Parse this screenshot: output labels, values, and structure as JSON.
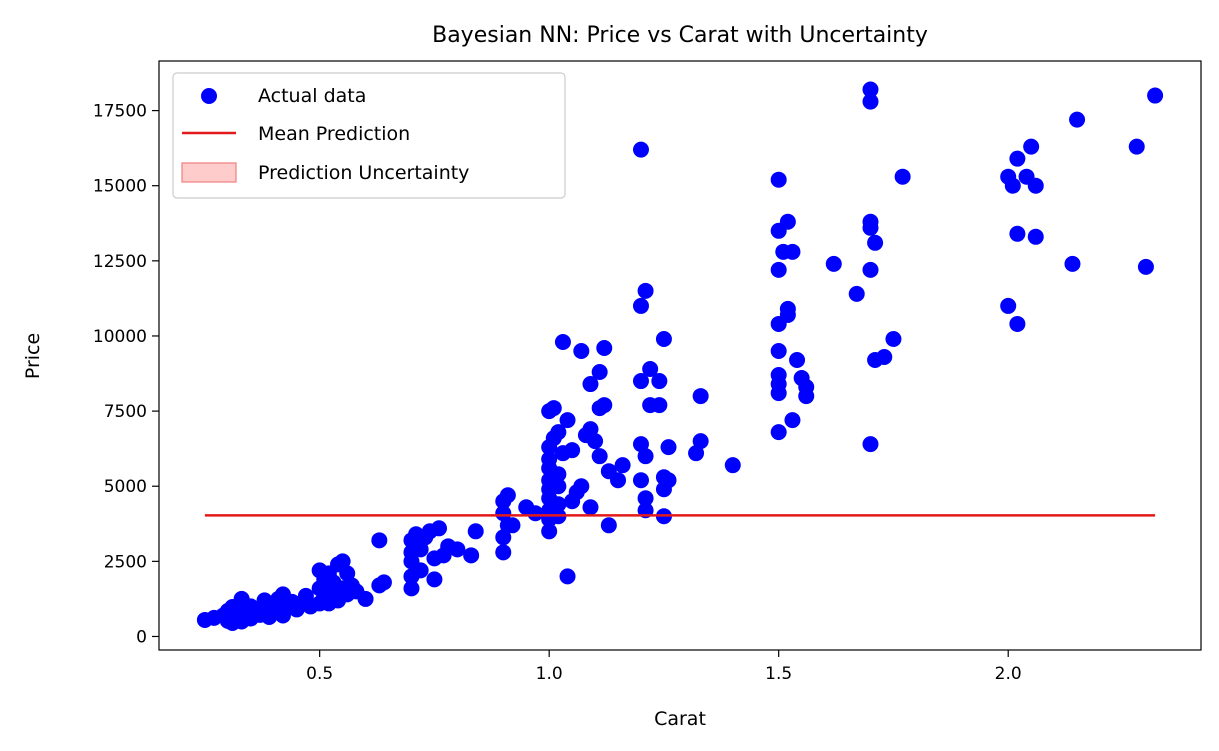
{
  "chart_data": {
    "type": "scatter",
    "title": "Bayesian NN: Price vs Carat with Uncertainty",
    "xlabel": "Carat",
    "ylabel": "Price",
    "xlim": [
      0.15,
      2.42
    ],
    "ylim": [
      -450,
      19150
    ],
    "xticks": [
      0.5,
      1.0,
      1.5,
      2.0
    ],
    "xtick_labels": [
      "0.5",
      "1.0",
      "1.5",
      "2.0"
    ],
    "yticks": [
      0,
      2500,
      5000,
      7500,
      10000,
      12500,
      15000,
      17500
    ],
    "ytick_labels": [
      "0",
      "2500",
      "5000",
      "7500",
      "10000",
      "12500",
      "15000",
      "17500"
    ],
    "grid": false,
    "legend_position": "upper-left",
    "colors": {
      "points": "#0000ff",
      "mean_line": "#e31a1c",
      "uncertainty_fill": "#ffcccc",
      "uncertainty_edge": "#f08080"
    },
    "series": [
      {
        "name": "Actual data",
        "kind": "scatter",
        "points": [
          [
            0.25,
            550
          ],
          [
            0.27,
            620
          ],
          [
            0.29,
            700
          ],
          [
            0.3,
            520
          ],
          [
            0.3,
            850
          ],
          [
            0.31,
            980
          ],
          [
            0.31,
            450
          ],
          [
            0.32,
            620
          ],
          [
            0.32,
            780
          ],
          [
            0.33,
            1250
          ],
          [
            0.33,
            500
          ],
          [
            0.34,
            700
          ],
          [
            0.34,
            900
          ],
          [
            0.35,
            600
          ],
          [
            0.35,
            1000
          ],
          [
            0.36,
            800
          ],
          [
            0.37,
            720
          ],
          [
            0.38,
            950
          ],
          [
            0.38,
            1200
          ],
          [
            0.39,
            650
          ],
          [
            0.4,
            1050
          ],
          [
            0.4,
            800
          ],
          [
            0.41,
            900
          ],
          [
            0.41,
            1250
          ],
          [
            0.42,
            700
          ],
          [
            0.42,
            1400
          ],
          [
            0.43,
            1000
          ],
          [
            0.44,
            1150
          ],
          [
            0.45,
            900
          ],
          [
            0.46,
            1100
          ],
          [
            0.47,
            1350
          ],
          [
            0.48,
            1000
          ],
          [
            0.5,
            1100
          ],
          [
            0.5,
            1600
          ],
          [
            0.5,
            2200
          ],
          [
            0.51,
            1300
          ],
          [
            0.51,
            1900
          ],
          [
            0.52,
            1100
          ],
          [
            0.52,
            2100
          ],
          [
            0.53,
            1500
          ],
          [
            0.53,
            1800
          ],
          [
            0.54,
            1200
          ],
          [
            0.54,
            2400
          ],
          [
            0.55,
            1600
          ],
          [
            0.55,
            2500
          ],
          [
            0.56,
            1400
          ],
          [
            0.56,
            2100
          ],
          [
            0.57,
            1700
          ],
          [
            0.58,
            1500
          ],
          [
            0.6,
            1250
          ],
          [
            0.63,
            3200
          ],
          [
            0.63,
            1700
          ],
          [
            0.64,
            1800
          ],
          [
            0.7,
            1600
          ],
          [
            0.7,
            2000
          ],
          [
            0.7,
            2500
          ],
          [
            0.7,
            2800
          ],
          [
            0.7,
            3200
          ],
          [
            0.71,
            3400
          ],
          [
            0.72,
            2200
          ],
          [
            0.72,
            2900
          ],
          [
            0.73,
            3300
          ],
          [
            0.74,
            3500
          ],
          [
            0.75,
            1900
          ],
          [
            0.75,
            2600
          ],
          [
            0.76,
            3600
          ],
          [
            0.77,
            2700
          ],
          [
            0.78,
            3000
          ],
          [
            0.8,
            2900
          ],
          [
            0.83,
            2700
          ],
          [
            0.84,
            3500
          ],
          [
            0.9,
            2800
          ],
          [
            0.9,
            3300
          ],
          [
            0.9,
            4100
          ],
          [
            0.9,
            4500
          ],
          [
            0.91,
            3700
          ],
          [
            0.91,
            4700
          ],
          [
            0.92,
            3700
          ],
          [
            0.95,
            4300
          ],
          [
            0.97,
            4100
          ],
          [
            1.0,
            3500
          ],
          [
            1.0,
            3900
          ],
          [
            1.0,
            4200
          ],
          [
            1.0,
            4600
          ],
          [
            1.0,
            4900
          ],
          [
            1.0,
            5200
          ],
          [
            1.0,
            5600
          ],
          [
            1.0,
            5900
          ],
          [
            1.0,
            6300
          ],
          [
            1.0,
            7500
          ],
          [
            1.01,
            6600
          ],
          [
            1.01,
            7600
          ],
          [
            1.02,
            4000
          ],
          [
            1.02,
            4400
          ],
          [
            1.02,
            5000
          ],
          [
            1.02,
            5400
          ],
          [
            1.02,
            6800
          ],
          [
            1.03,
            9800
          ],
          [
            1.03,
            6100
          ],
          [
            1.04,
            2000
          ],
          [
            1.04,
            7200
          ],
          [
            1.05,
            4500
          ],
          [
            1.05,
            6200
          ],
          [
            1.06,
            4800
          ],
          [
            1.07,
            5000
          ],
          [
            1.07,
            9500
          ],
          [
            1.08,
            6700
          ],
          [
            1.09,
            8400
          ],
          [
            1.09,
            4300
          ],
          [
            1.09,
            6900
          ],
          [
            1.1,
            6500
          ],
          [
            1.11,
            7600
          ],
          [
            1.11,
            8800
          ],
          [
            1.11,
            6000
          ],
          [
            1.12,
            9600
          ],
          [
            1.12,
            7700
          ],
          [
            1.13,
            5500
          ],
          [
            1.13,
            3700
          ],
          [
            1.15,
            5200
          ],
          [
            1.16,
            5700
          ],
          [
            1.2,
            16200
          ],
          [
            1.2,
            11000
          ],
          [
            1.2,
            8500
          ],
          [
            1.2,
            6400
          ],
          [
            1.2,
            5200
          ],
          [
            1.21,
            11500
          ],
          [
            1.21,
            6000
          ],
          [
            1.21,
            4600
          ],
          [
            1.21,
            4200
          ],
          [
            1.22,
            8900
          ],
          [
            1.22,
            7700
          ],
          [
            1.24,
            8500
          ],
          [
            1.24,
            7700
          ],
          [
            1.25,
            9900
          ],
          [
            1.25,
            5300
          ],
          [
            1.25,
            4900
          ],
          [
            1.25,
            4000
          ],
          [
            1.26,
            6300
          ],
          [
            1.26,
            5200
          ],
          [
            1.32,
            6100
          ],
          [
            1.33,
            8000
          ],
          [
            1.33,
            6500
          ],
          [
            1.4,
            5700
          ],
          [
            1.5,
            15200
          ],
          [
            1.5,
            13500
          ],
          [
            1.5,
            12200
          ],
          [
            1.5,
            10400
          ],
          [
            1.5,
            9500
          ],
          [
            1.5,
            8700
          ],
          [
            1.5,
            8400
          ],
          [
            1.5,
            8100
          ],
          [
            1.5,
            6800
          ],
          [
            1.51,
            12800
          ],
          [
            1.52,
            13800
          ],
          [
            1.52,
            10900
          ],
          [
            1.52,
            10700
          ],
          [
            1.53,
            12800
          ],
          [
            1.53,
            7200
          ],
          [
            1.54,
            9200
          ],
          [
            1.55,
            8600
          ],
          [
            1.56,
            8300
          ],
          [
            1.56,
            8000
          ],
          [
            1.62,
            12400
          ],
          [
            1.67,
            11400
          ],
          [
            1.7,
            18200
          ],
          [
            1.7,
            17800
          ],
          [
            1.7,
            13800
          ],
          [
            1.7,
            13600
          ],
          [
            1.7,
            12200
          ],
          [
            1.7,
            6400
          ],
          [
            1.71,
            13100
          ],
          [
            1.71,
            9200
          ],
          [
            1.73,
            9300
          ],
          [
            1.75,
            9900
          ],
          [
            1.77,
            15300
          ],
          [
            2.0,
            15300
          ],
          [
            2.0,
            11000
          ],
          [
            2.01,
            15000
          ],
          [
            2.02,
            15900
          ],
          [
            2.02,
            13400
          ],
          [
            2.02,
            10400
          ],
          [
            2.04,
            15300
          ],
          [
            2.05,
            16300
          ],
          [
            2.06,
            15000
          ],
          [
            2.06,
            13300
          ],
          [
            2.14,
            12400
          ],
          [
            2.15,
            17200
          ],
          [
            2.28,
            16300
          ],
          [
            2.3,
            12300
          ],
          [
            2.32,
            18000
          ]
        ]
      },
      {
        "name": "Mean Prediction",
        "kind": "line",
        "x": [
          0.25,
          2.32
        ],
        "y": [
          4030,
          4030
        ]
      },
      {
        "name": "Prediction Uncertainty",
        "kind": "band",
        "x": [
          0.25,
          2.32
        ],
        "lower": [
          4020,
          4020
        ],
        "upper": [
          4040,
          4040
        ]
      }
    ]
  }
}
